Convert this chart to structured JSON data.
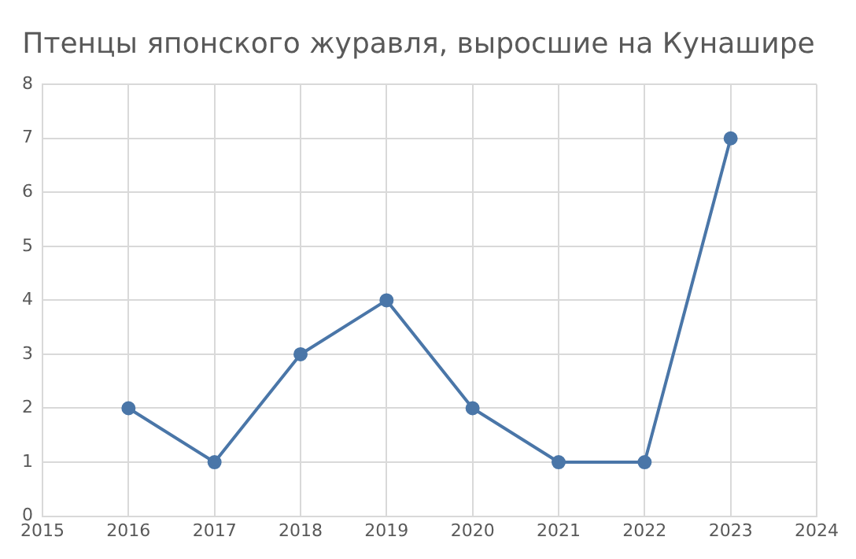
{
  "chart_data": {
    "type": "line",
    "title": "Птенцы японского журавля, выросшие на Кунашире",
    "x": [
      2016,
      2017,
      2018,
      2019,
      2020,
      2021,
      2022,
      2023
    ],
    "series": [
      {
        "color": "#4a76a8",
        "values": [
          2,
          1,
          3,
          4,
          2,
          1,
          1,
          7
        ]
      }
    ],
    "xlim": [
      2015,
      2024
    ],
    "xticks": [
      2015,
      2016,
      2017,
      2018,
      2019,
      2020,
      2021,
      2022,
      2023,
      2024
    ],
    "ylim": [
      0,
      8
    ],
    "yticks": [
      0,
      1,
      2,
      3,
      4,
      5,
      6,
      7,
      8
    ],
    "grid": true,
    "marker": "circle",
    "line_style": "solid",
    "legend": false
  }
}
